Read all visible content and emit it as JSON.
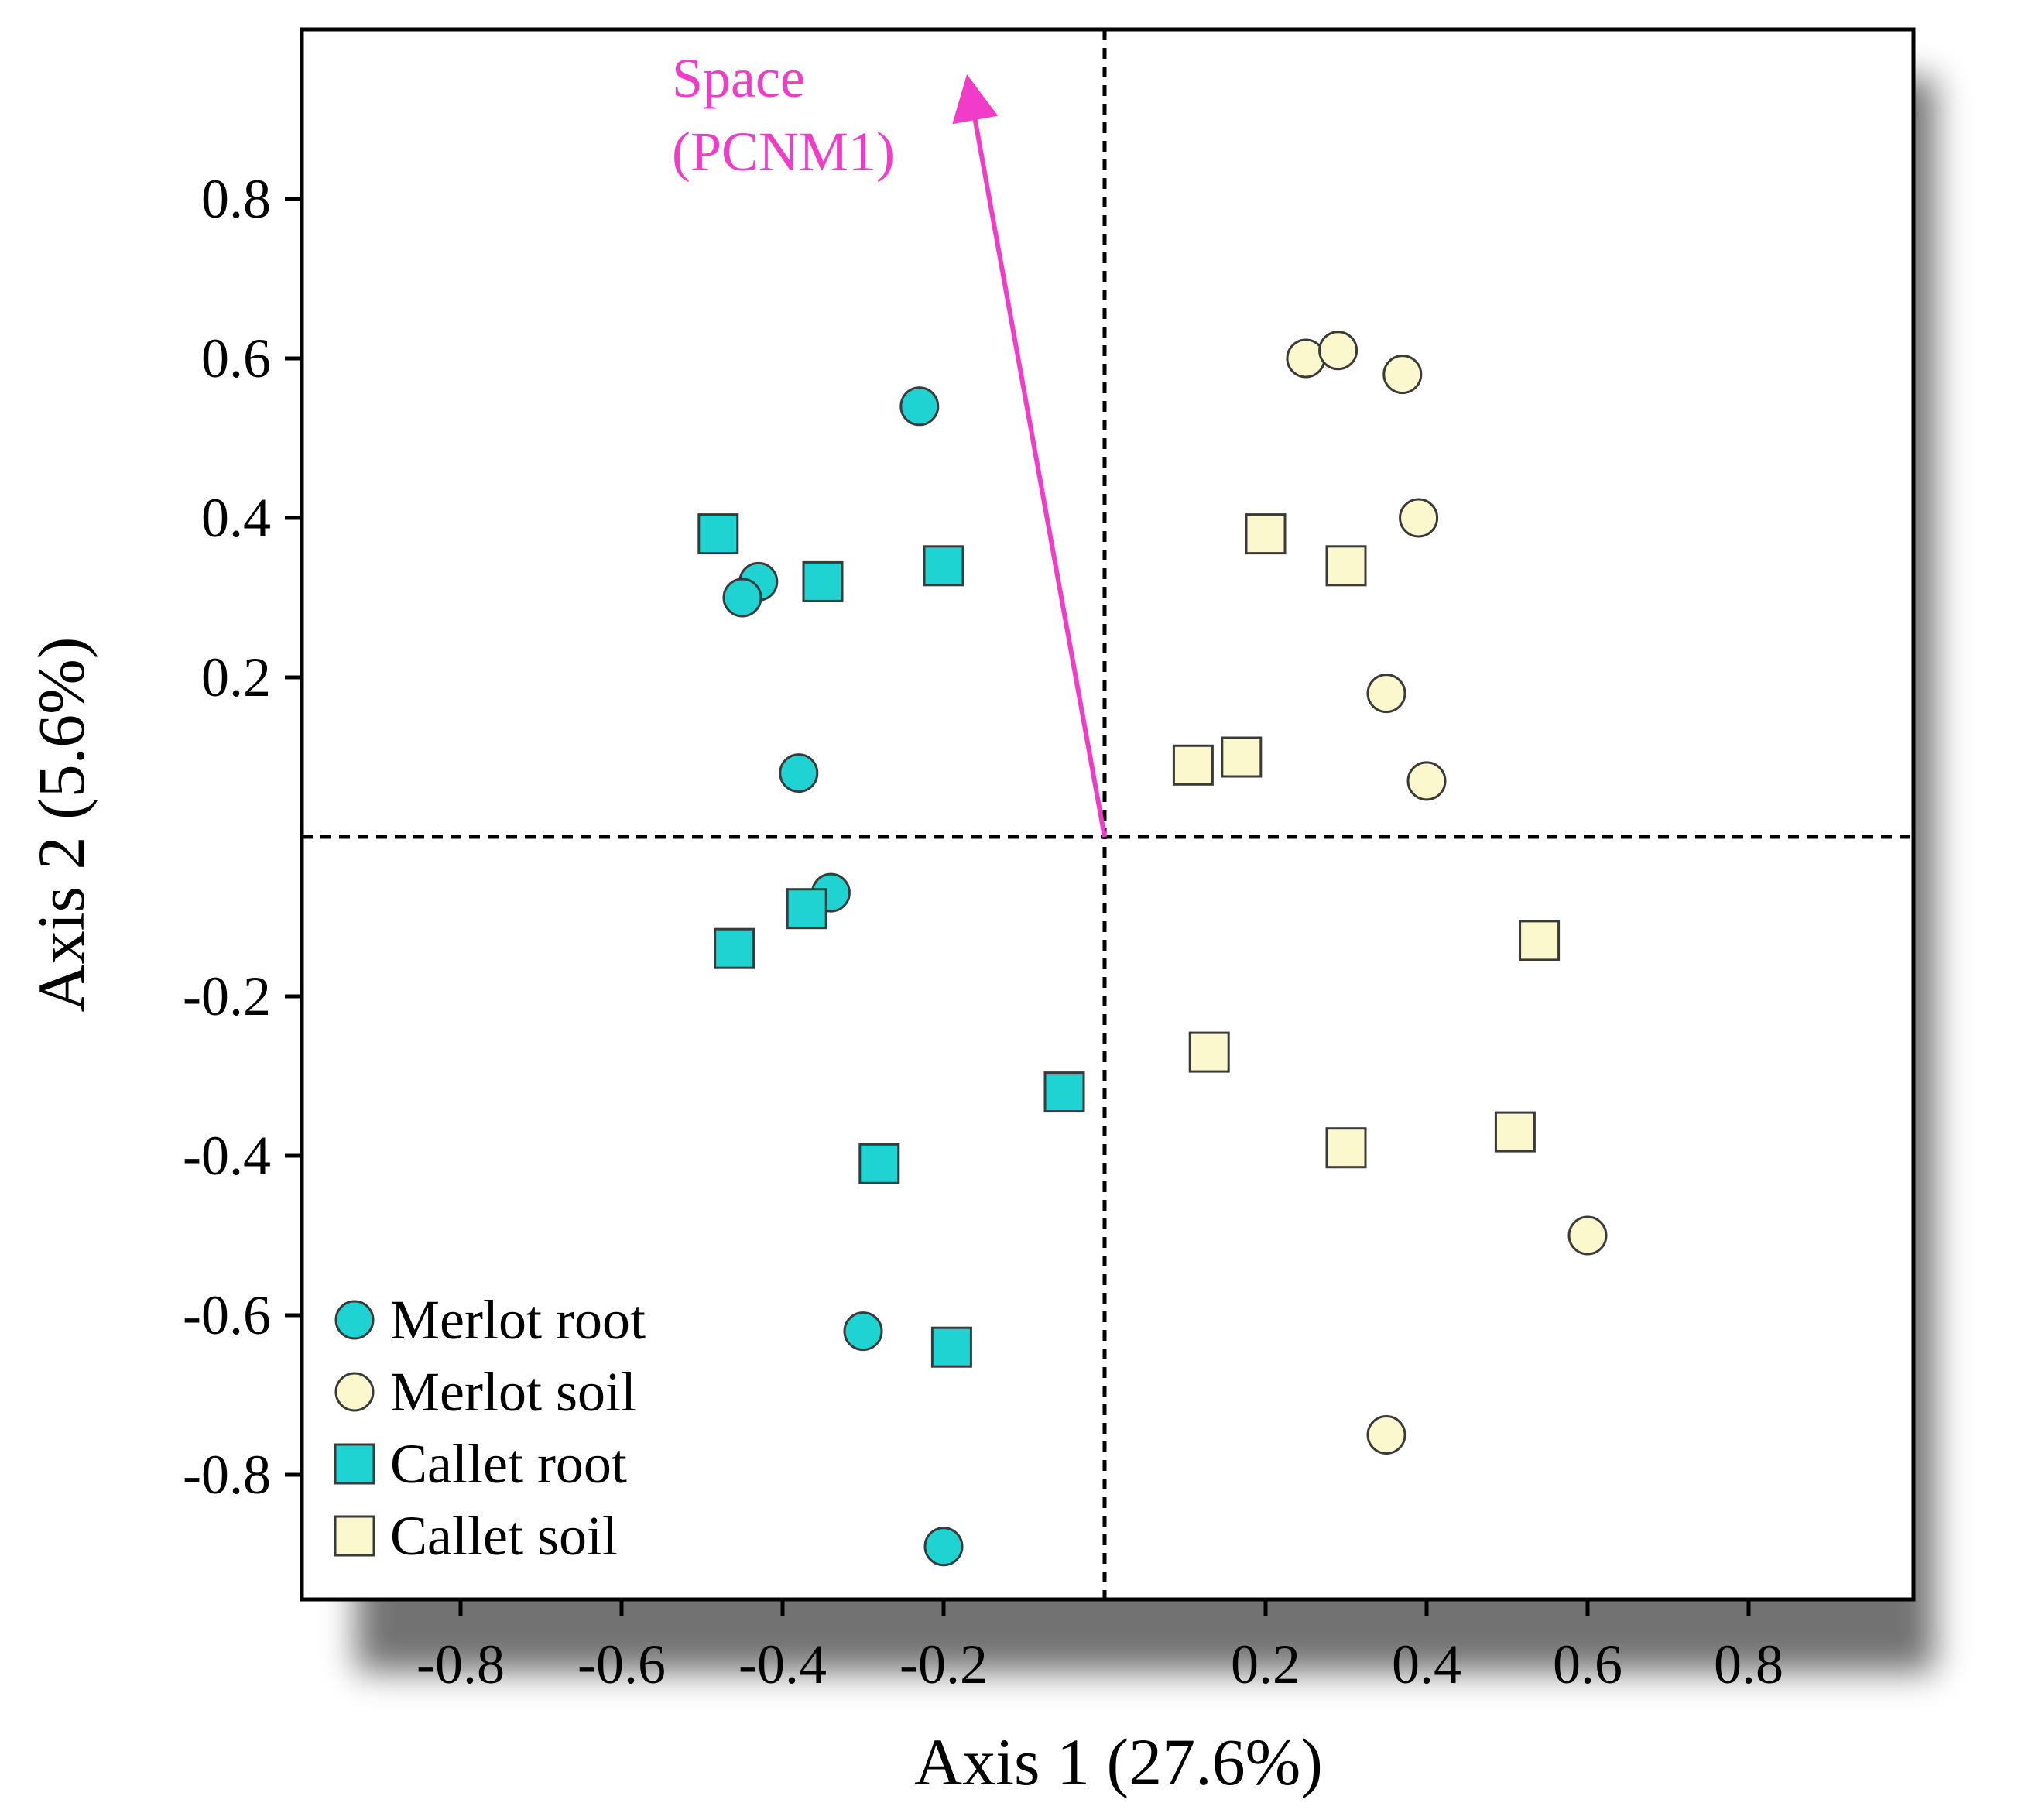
{
  "chart_data": {
    "type": "scatter",
    "title": "",
    "xlabel": "Axis 1 (27.6%)",
    "ylabel": "Axis 2 (5.6%)",
    "xlim": [
      -1.0,
      1.0
    ],
    "ylim": [
      -0.96,
      1.0
    ],
    "x_ticks": [
      -0.8,
      -0.6,
      -0.4,
      -0.2,
      0.2,
      0.4,
      0.6,
      0.8
    ],
    "x_tick_labels": [
      "-0.8",
      "-0.6",
      "-0.4",
      "-0.2",
      "0.2",
      "0.4",
      "0.6",
      "0.8"
    ],
    "y_ticks": [
      0.8,
      0.6,
      0.4,
      0.2,
      -0.2,
      -0.4,
      -0.6,
      -0.8
    ],
    "y_tick_labels": [
      "0.8",
      "0.6",
      "0.4",
      "0.2",
      "-0.2",
      "-0.4",
      "-0.6",
      "-0.8"
    ],
    "grid": false,
    "reference_lines": {
      "x": 0,
      "y": 0,
      "style": "dashed"
    },
    "legend_position": "bottom-left",
    "series": [
      {
        "name": "Merlot root",
        "marker": "circle",
        "fill": "#1fd3d3",
        "points": [
          [
            -0.23,
            0.54
          ],
          [
            -0.43,
            0.32
          ],
          [
            -0.45,
            0.3
          ],
          [
            -0.38,
            0.08
          ],
          [
            -0.34,
            -0.07
          ],
          [
            -0.3,
            -0.62
          ],
          [
            -0.2,
            -0.89
          ]
        ]
      },
      {
        "name": "Merlot soil",
        "marker": "circle",
        "fill": "#fbf8cd",
        "points": [
          [
            0.25,
            0.6
          ],
          [
            0.29,
            0.61
          ],
          [
            0.37,
            0.58
          ],
          [
            0.39,
            0.4
          ],
          [
            0.35,
            0.18
          ],
          [
            0.4,
            0.07
          ],
          [
            0.6,
            -0.5
          ],
          [
            0.35,
            -0.75
          ]
        ]
      },
      {
        "name": "Callet root",
        "marker": "square",
        "fill": "#1fd3d3",
        "points": [
          [
            -0.48,
            0.38
          ],
          [
            -0.35,
            0.32
          ],
          [
            -0.2,
            0.34
          ],
          [
            -0.37,
            -0.09
          ],
          [
            -0.46,
            -0.14
          ],
          [
            -0.05,
            -0.32
          ],
          [
            -0.28,
            -0.41
          ],
          [
            -0.19,
            -0.64
          ]
        ]
      },
      {
        "name": "Callet soil",
        "marker": "square",
        "fill": "#fbf8cd",
        "points": [
          [
            0.2,
            0.38
          ],
          [
            0.3,
            0.34
          ],
          [
            0.11,
            0.09
          ],
          [
            0.17,
            0.1
          ],
          [
            0.54,
            -0.13
          ],
          [
            0.13,
            -0.27
          ],
          [
            0.3,
            -0.39
          ],
          [
            0.51,
            -0.37
          ]
        ]
      }
    ],
    "vector": {
      "label_lines": [
        "Space",
        "(PCNM1)"
      ],
      "from": [
        0,
        0
      ],
      "to": [
        -0.17,
        0.97
      ],
      "color": "#f03cc8"
    }
  }
}
